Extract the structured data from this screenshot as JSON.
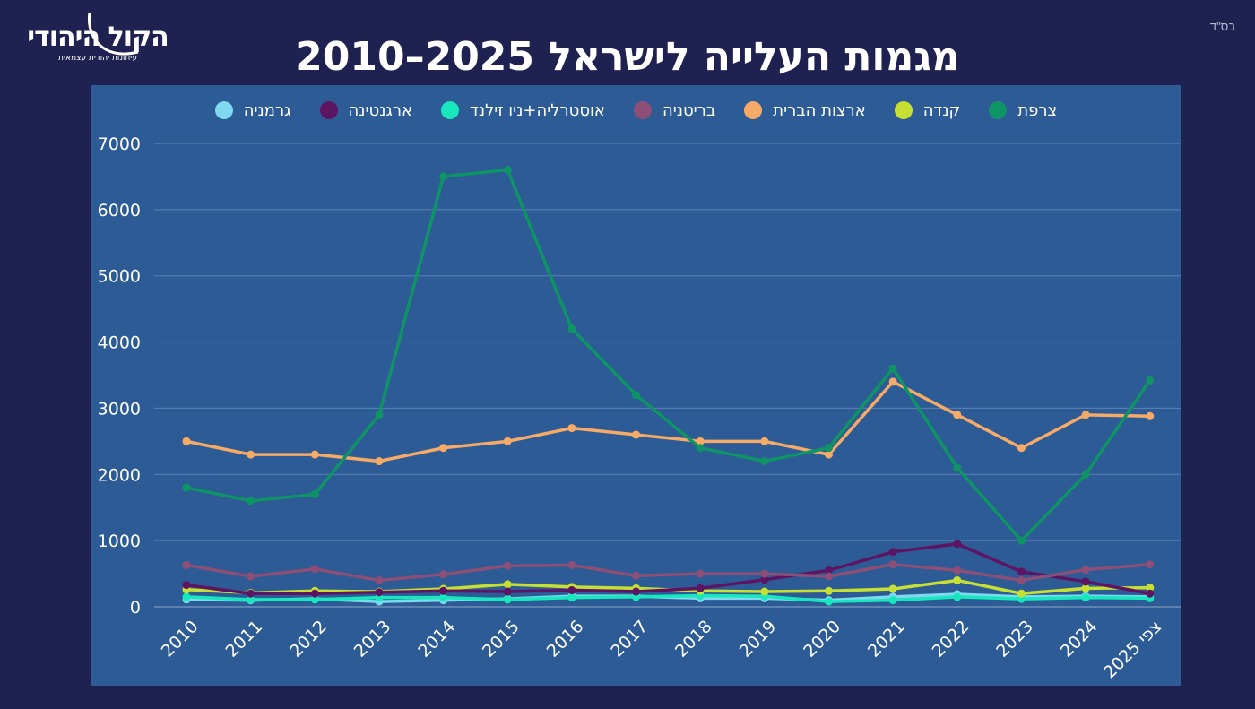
{
  "corner_note": "בס\"ד",
  "logo": {
    "name": "הקול היהודי",
    "tagline": "עיתונות יהודית עצמאית"
  },
  "title": "מגמות העלייה לישראל 2025–2010",
  "chart_data": {
    "type": "line",
    "title": "מגמות העלייה לישראל 2025–2010",
    "xlabel": "",
    "ylabel": "",
    "ylim": [
      0,
      7000
    ],
    "yticks": [
      0,
      1000,
      2000,
      3000,
      4000,
      5000,
      6000,
      7000
    ],
    "grid": true,
    "legend_position": "top",
    "categories": [
      "2010",
      "2011",
      "2012",
      "2013",
      "2014",
      "2015",
      "2016",
      "2017",
      "2018",
      "2019",
      "2020",
      "2021",
      "2022",
      "2023",
      "2024",
      "צפי 2025"
    ],
    "series": [
      {
        "name": "צרפת",
        "color": "#0e9465",
        "values": [
          1800,
          1600,
          1700,
          2900,
          6500,
          6600,
          4200,
          3200,
          2400,
          2200,
          2400,
          3600,
          2100,
          1000,
          2000,
          3420
        ]
      },
      {
        "name": "ארצות הברית",
        "color": "#f6aa68",
        "values": [
          2500,
          2300,
          2300,
          2200,
          2400,
          2500,
          2700,
          2600,
          2500,
          2500,
          2300,
          3400,
          2900,
          2400,
          2900,
          2880
        ]
      },
      {
        "name": "בריטניה",
        "color": "#8d4f76",
        "values": [
          630,
          460,
          570,
          400,
          490,
          620,
          630,
          470,
          500,
          500,
          460,
          640,
          550,
          400,
          560,
          640
        ]
      },
      {
        "name": "ארגנטינה",
        "color": "#5d1463",
        "values": [
          330,
          200,
          200,
          220,
          240,
          230,
          250,
          230,
          280,
          410,
          550,
          830,
          950,
          530,
          380,
          200
        ]
      },
      {
        "name": "קנדה",
        "color": "#c6df32",
        "values": [
          260,
          210,
          240,
          230,
          270,
          340,
          300,
          280,
          240,
          230,
          240,
          270,
          400,
          200,
          280,
          290
        ]
      },
      {
        "name": "אוסטרליה+ניו זילנד",
        "color": "#16e7bd",
        "values": [
          150,
          110,
          110,
          140,
          140,
          110,
          140,
          150,
          170,
          160,
          80,
          100,
          150,
          120,
          140,
          130
        ]
      },
      {
        "name": "גרמניה",
        "color": "#7ed9ee",
        "values": [
          110,
          100,
          120,
          80,
          100,
          120,
          160,
          160,
          130,
          130,
          100,
          150,
          190,
          150,
          160,
          150
        ]
      }
    ],
    "legend_order": [
      "צרפת",
      "קנדה",
      "ארצות הברית",
      "בריטניה",
      "אוסטרליה+ניו זילנד",
      "ארגנטינה",
      "גרמניה"
    ]
  }
}
